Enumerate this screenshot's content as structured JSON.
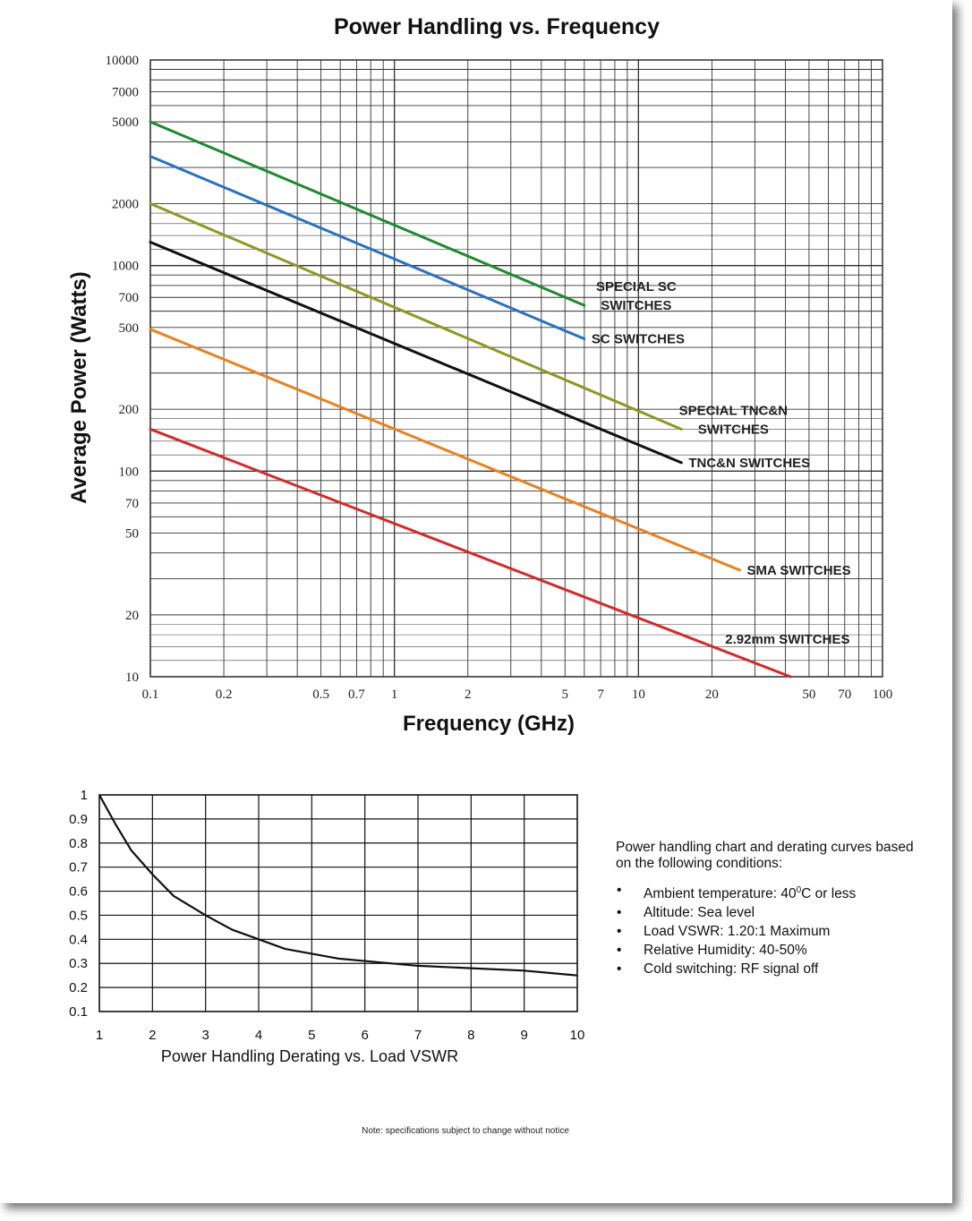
{
  "chart_data": [
    {
      "type": "line",
      "title": "Power Handling vs. Frequency",
      "xlabel": "Frequency (GHz)",
      "ylabel": "Average Power (Watts)",
      "x_scale": "log",
      "y_scale": "log",
      "xlim": [
        0.1,
        100
      ],
      "ylim": [
        10,
        10000
      ],
      "grid": true,
      "x_tick_labels": [
        "0.1",
        "0.2",
        "0.5",
        "0.7",
        "1",
        "2",
        "5",
        "7",
        "10",
        "20",
        "50",
        "70",
        "100"
      ],
      "y_tick_labels": [
        "10000",
        "7000",
        "5000",
        "2000",
        "1000",
        "700",
        "500",
        "200",
        "100",
        "70",
        "50",
        "20",
        "10"
      ],
      "series": [
        {
          "name": "SPECIAL SC SWITCHES",
          "label_lines": [
            "SPECIAL SC",
            "SWITCHES"
          ],
          "color": "#1e8a2e",
          "x": [
            0.1,
            6
          ],
          "y": [
            5000,
            640
          ]
        },
        {
          "name": "SC SWITCHES",
          "label_lines": [
            "SC SWITCHES"
          ],
          "color": "#2a72c0",
          "x": [
            0.1,
            6
          ],
          "y": [
            3400,
            440
          ]
        },
        {
          "name": "SPECIAL TNC&N SWITCHES",
          "label_lines": [
            "SPECIAL TNC&N",
            "SWITCHES"
          ],
          "color": "#8c9a23",
          "x": [
            0.1,
            15
          ],
          "y": [
            2000,
            160
          ]
        },
        {
          "name": "TNC&N SWITCHES",
          "label_lines": [
            "TNC&N SWITCHES"
          ],
          "color": "#111111",
          "x": [
            0.1,
            15
          ],
          "y": [
            1300,
            110
          ]
        },
        {
          "name": "SMA SWITCHES",
          "label_lines": [
            "SMA SWITCHES"
          ],
          "color": "#e8821e",
          "x": [
            0.1,
            26
          ],
          "y": [
            490,
            33
          ]
        },
        {
          "name": "2.92mm SWITCHES",
          "label_lines": [
            "2.92mm SWITCHES"
          ],
          "color": "#d42a2a",
          "x": [
            0.1,
            42
          ],
          "y": [
            160,
            10
          ]
        }
      ]
    },
    {
      "type": "line",
      "title": "",
      "xlabel": "Power Handling Derating vs. Load VSWR",
      "ylabel": "",
      "xlim": [
        1,
        10
      ],
      "ylim": [
        0.1,
        1
      ],
      "grid": true,
      "x_tick_labels": [
        "1",
        "2",
        "3",
        "4",
        "5",
        "6",
        "7",
        "8",
        "9",
        "10"
      ],
      "y_tick_labels": [
        "1",
        "0.9",
        "0.8",
        "0.7",
        "0.6",
        "0.5",
        "0.4",
        "0.3",
        "0.2",
        "0.1"
      ],
      "series": [
        {
          "color": "#111111",
          "x": [
            1,
            1.3,
            1.6,
            2.0,
            2.4,
            3.0,
            3.5,
            4.0,
            4.5,
            5.0,
            5.5,
            6.0,
            7.0,
            8.0,
            9.0,
            10.0
          ],
          "y": [
            1.0,
            0.88,
            0.77,
            0.67,
            0.58,
            0.5,
            0.44,
            0.4,
            0.36,
            0.34,
            0.32,
            0.31,
            0.29,
            0.28,
            0.27,
            0.25
          ]
        }
      ]
    }
  ],
  "conditions": {
    "intro": "Power handling chart and derating curves based on the following conditions:",
    "items": [
      {
        "pre": "Ambient temperature: 40",
        "sup": "0",
        "post": "C or less"
      },
      {
        "pre": "Altitude: Sea level",
        "sup": "",
        "post": ""
      },
      {
        "pre": "Load VSWR: 1.20:1 Maximum",
        "sup": "",
        "post": ""
      },
      {
        "pre": "Relative Humidity: 40-50%",
        "sup": "",
        "post": ""
      },
      {
        "pre": "Cold switching: RF signal off",
        "sup": "",
        "post": ""
      }
    ]
  },
  "note": "Note: specifications subject to change without notice"
}
